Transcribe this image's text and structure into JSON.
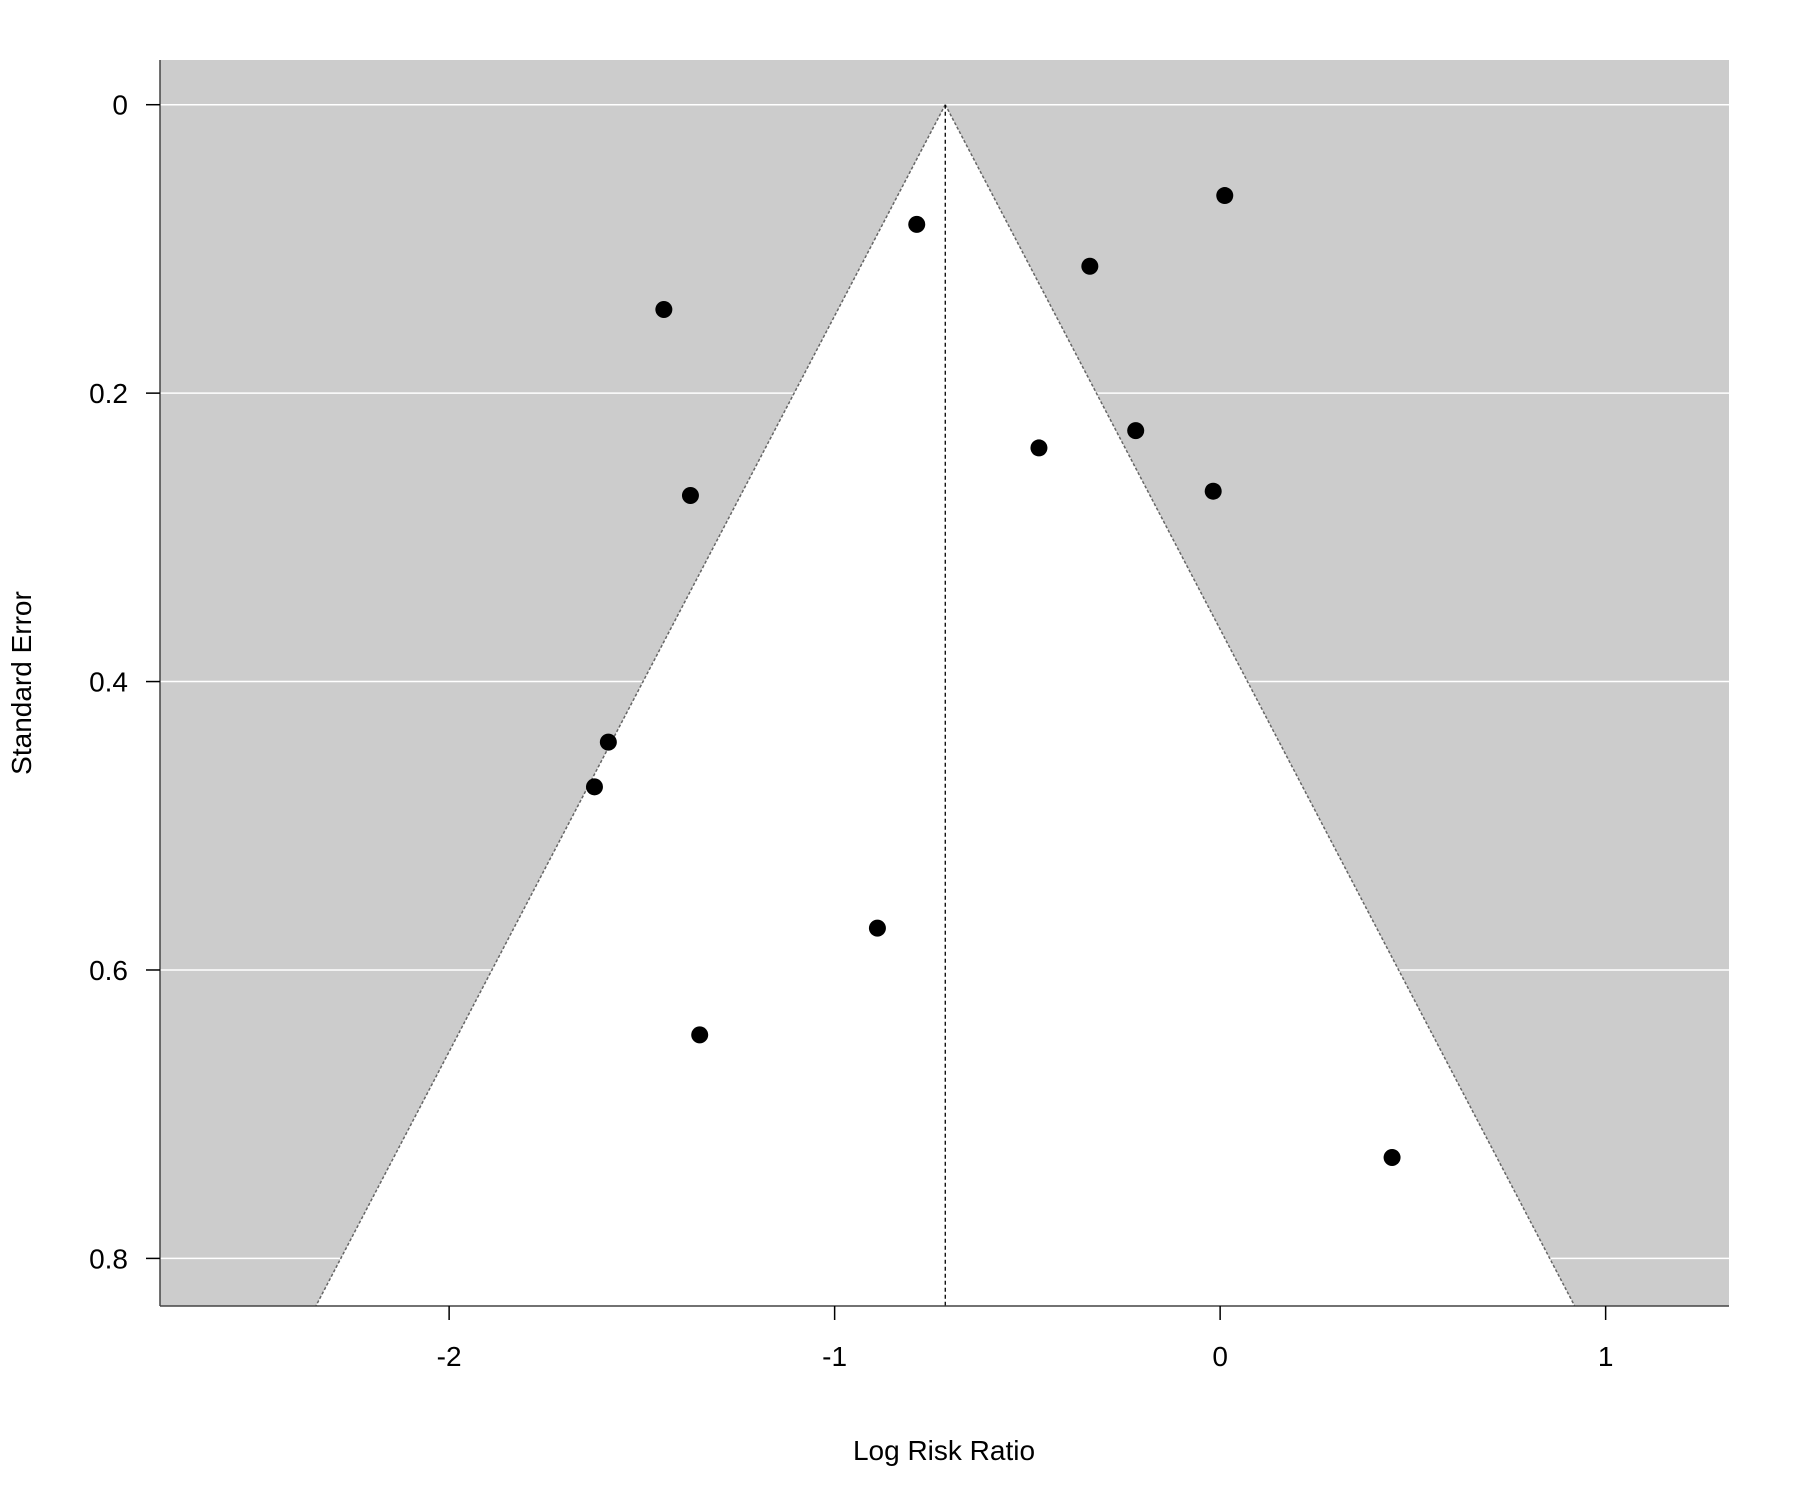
{
  "chart_data": {
    "type": "scatter",
    "subtype": "funnel-plot",
    "title": "",
    "xlabel": "Log Risk Ratio",
    "ylabel": "Standard Error",
    "xlim": [
      -2.75,
      1.32
    ],
    "ylim": [
      0.833,
      -0.031
    ],
    "y_reversed": true,
    "x_ticks": [
      -2,
      -1,
      0,
      1
    ],
    "x_tick_labels": [
      "-2",
      "-1",
      "0",
      "1"
    ],
    "y_ticks": [
      0,
      0.2,
      0.4,
      0.6,
      0.8
    ],
    "y_tick_labels": [
      "0",
      "0.2",
      "0.4",
      "0.6",
      "0.8"
    ],
    "grid": "horizontal",
    "center_estimate": -0.713,
    "funnel_z": 1.96,
    "colors": {
      "background": "#cccccc",
      "funnel": "#ffffff",
      "points": "#000000",
      "gridlines": "#ffffff"
    },
    "points": [
      {
        "x": -1.443,
        "y": 0.142
      },
      {
        "x": -0.787,
        "y": 0.083
      },
      {
        "x": 0.012,
        "y": 0.063
      },
      {
        "x": -0.338,
        "y": 0.112
      },
      {
        "x": -1.374,
        "y": 0.271
      },
      {
        "x": -0.47,
        "y": 0.238
      },
      {
        "x": -0.219,
        "y": 0.226
      },
      {
        "x": -0.018,
        "y": 0.268
      },
      {
        "x": -1.587,
        "y": 0.442
      },
      {
        "x": -1.623,
        "y": 0.473
      },
      {
        "x": -0.889,
        "y": 0.571
      },
      {
        "x": -1.35,
        "y": 0.645
      },
      {
        "x": 0.446,
        "y": 0.73
      }
    ]
  }
}
